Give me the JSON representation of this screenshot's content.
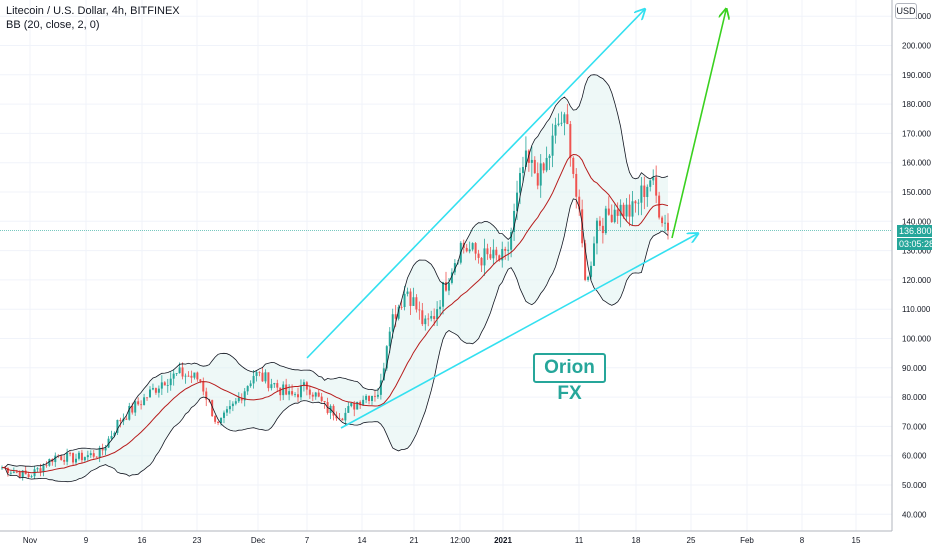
{
  "legend": {
    "title": "Litecoin / U.S. Dollar, 4h, BITFINEX",
    "indicator": "BB (20, close, 2, 0)"
  },
  "currency_button": "USD",
  "price_tag": {
    "price": "136.800",
    "countdown": "03:05:28"
  },
  "watermark": "Orion FX",
  "colors": {
    "up": "#26a69a",
    "down": "#ef5350",
    "basis": "#b71c1c",
    "bands": "#131722",
    "band_fill": "#e0f2f1",
    "channel": "#33e0f0",
    "target_arrow": "#3ad11f"
  },
  "chart_data": {
    "type": "candlestick",
    "y_axis_labels": [
      "210.000",
      "200.000",
      "190.000",
      "180.000",
      "170.000",
      "160.000",
      "150.000",
      "140.000",
      "130.000",
      "120.000",
      "110.000",
      "100.000",
      "90.000",
      "80.000",
      "70.000",
      "60.000",
      "50.000",
      "40.000"
    ],
    "x_axis_labels": [
      "Nov",
      "9",
      "16",
      "23",
      "Dec",
      "7",
      "14",
      "21",
      "12:00",
      "2021",
      "11",
      "18",
      "25",
      "Feb",
      "8",
      "15"
    ],
    "ylim": [
      35,
      212
    ],
    "last_price": 136.8,
    "close_path": [
      {
        "t": 0,
        "v": 56
      },
      {
        "t": 3,
        "v": 53
      },
      {
        "t": 6,
        "v": 60
      },
      {
        "t": 8,
        "v": 59
      },
      {
        "t": 11,
        "v": 61
      },
      {
        "t": 13,
        "v": 72
      },
      {
        "t": 16,
        "v": 80
      },
      {
        "t": 18,
        "v": 86
      },
      {
        "t": 20,
        "v": 88
      },
      {
        "t": 22,
        "v": 86
      },
      {
        "t": 24,
        "v": 70
      },
      {
        "t": 26,
        "v": 78
      },
      {
        "t": 28,
        "v": 88
      },
      {
        "t": 30,
        "v": 85
      },
      {
        "t": 32,
        "v": 80
      },
      {
        "t": 34,
        "v": 84
      },
      {
        "t": 36,
        "v": 76
      },
      {
        "t": 38,
        "v": 74
      },
      {
        "t": 40,
        "v": 80
      },
      {
        "t": 42,
        "v": 82
      },
      {
        "t": 43,
        "v": 105
      },
      {
        "t": 45,
        "v": 117
      },
      {
        "t": 47,
        "v": 104
      },
      {
        "t": 48,
        "v": 108
      },
      {
        "t": 50,
        "v": 125
      },
      {
        "t": 51,
        "v": 132
      },
      {
        "t": 53,
        "v": 128
      },
      {
        "t": 55,
        "v": 127
      },
      {
        "t": 56,
        "v": 127
      },
      {
        "t": 58,
        "v": 160
      },
      {
        "t": 60,
        "v": 155
      },
      {
        "t": 62,
        "v": 175
      },
      {
        "t": 63,
        "v": 170
      },
      {
        "t": 65,
        "v": 117
      },
      {
        "t": 66,
        "v": 140
      },
      {
        "t": 67,
        "v": 140
      },
      {
        "t": 68,
        "v": 145
      },
      {
        "t": 70,
        "v": 143
      },
      {
        "t": 72,
        "v": 155
      },
      {
        "t": 73,
        "v": 145
      },
      {
        "t": 74,
        "v": 137
      }
    ]
  }
}
